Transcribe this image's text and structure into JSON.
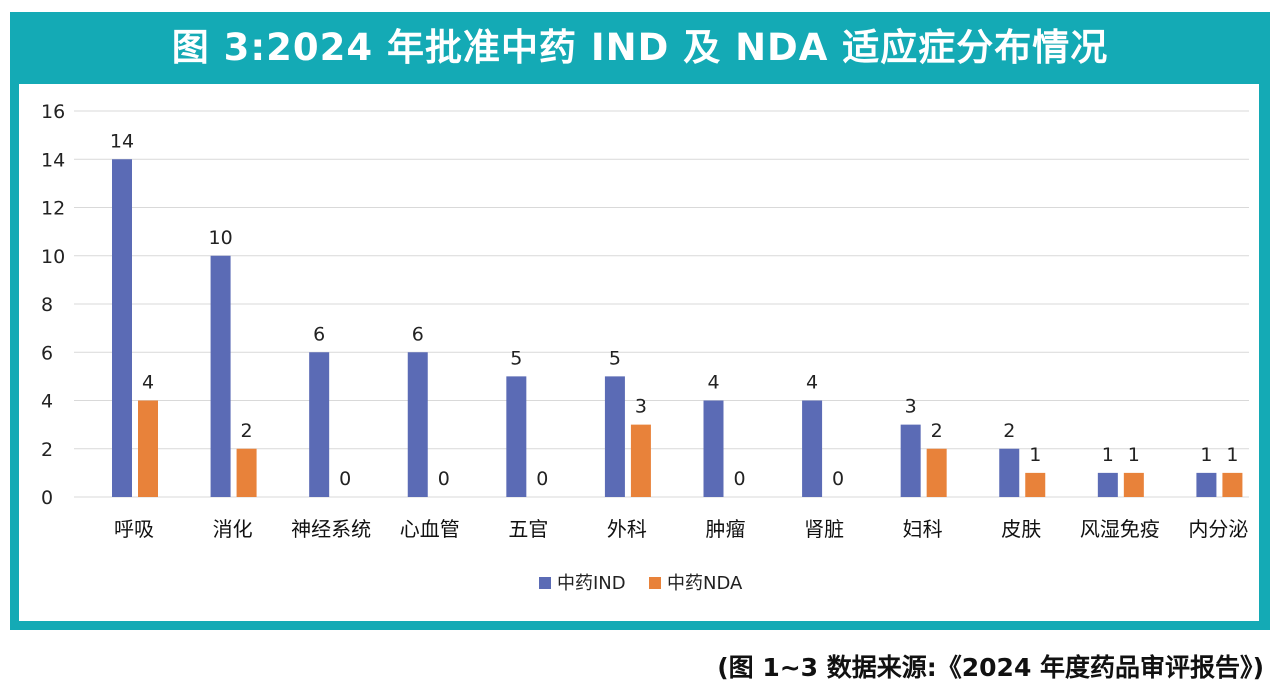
{
  "title": "图 3:2024 年批准中药 IND 及 NDA 适应症分布情况",
  "source": {
    "open": "(图 1~3 数据来源:",
    "report": "《2024 年度药品审评报告》",
    "close": ")"
  },
  "colors": {
    "frame": "#14aab5",
    "ind": "#5b6bb5",
    "nda": "#e8823a",
    "grid": "#d9d9d9"
  },
  "chart_data": {
    "type": "bar",
    "title": "图 3:2024 年批准中药 IND 及 NDA 适应症分布情况",
    "xlabel": "",
    "ylabel": "",
    "ylim": [
      0,
      16
    ],
    "yticks": [
      0,
      2,
      4,
      6,
      8,
      10,
      12,
      14,
      16
    ],
    "grid": true,
    "legend": "bottom-center",
    "categories": [
      "呼吸",
      "消化",
      "神经系统",
      "心血管",
      "五官",
      "外科",
      "肿瘤",
      "肾脏",
      "妇科",
      "皮肤",
      "风湿免疫",
      "内分泌"
    ],
    "series": [
      {
        "name": "中药IND",
        "color": "#5b6bb5",
        "values": [
          14,
          10,
          6,
          6,
          5,
          5,
          4,
          4,
          3,
          2,
          1,
          1
        ]
      },
      {
        "name": "中药NDA",
        "color": "#e8823a",
        "values": [
          4,
          2,
          0,
          0,
          0,
          3,
          0,
          0,
          2,
          1,
          1,
          1
        ]
      }
    ]
  }
}
